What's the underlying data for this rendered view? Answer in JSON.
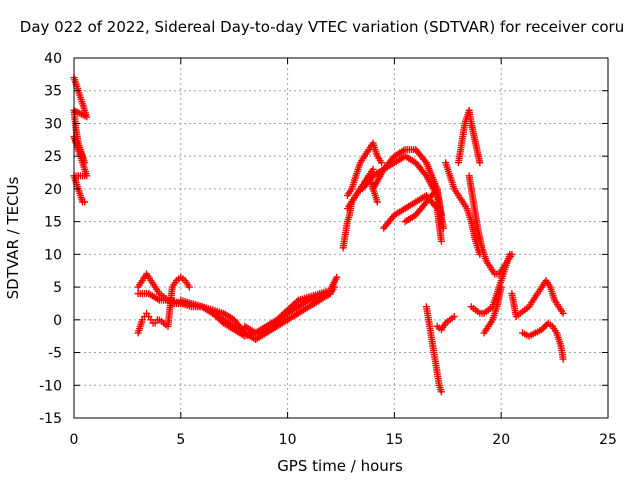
{
  "chart_data": {
    "type": "scatter",
    "title": "Day 022 of 2022, Sidereal Day-to-day VTEC variation (SDTVAR) for receiver coru",
    "xlabel": "GPS time / hours",
    "ylabel": "SDTVAR / TECUs",
    "xlim": [
      0,
      25
    ],
    "ylim": [
      -15,
      40
    ],
    "xticks": [
      0,
      5,
      10,
      15,
      20,
      25
    ],
    "yticks": [
      -15,
      -10,
      -5,
      0,
      5,
      10,
      15,
      20,
      25,
      30,
      35,
      40
    ],
    "grid": true,
    "marker": "+",
    "color": "#ff0000",
    "series": [
      {
        "x": [
          0.0,
          0.1,
          0.2,
          0.3,
          0.4,
          0.5,
          0.6,
          0.0,
          0.1,
          0.2,
          0.3,
          0.4,
          0.5,
          0.0,
          0.1,
          0.2,
          0.3,
          0.4,
          0.5,
          0.6,
          0.0,
          0.1,
          0.2,
          0.3,
          0.4,
          0.5
        ],
        "y": [
          37,
          36,
          35,
          34,
          33,
          32,
          31,
          32,
          29,
          27,
          26,
          25,
          24,
          28,
          27,
          26,
          25,
          24,
          23,
          22,
          22,
          21,
          20,
          19,
          18,
          18
        ]
      },
      {
        "x": [
          3.0,
          3.1,
          3.2,
          3.3,
          3.4,
          3.5,
          3.6,
          3.7,
          3.8,
          3.9,
          4.0,
          4.2,
          4.4,
          4.6,
          4.8,
          5.0,
          5.2,
          5.4
        ],
        "y": [
          -2,
          -1,
          0,
          0.5,
          1,
          0.5,
          0,
          -0.5,
          -0.5,
          0,
          0,
          -0.5,
          -1,
          5,
          6,
          6.5,
          6,
          5
        ]
      },
      {
        "x": [
          3.0,
          3.2,
          3.4,
          3.6,
          3.8,
          4.0,
          4.2,
          4.4,
          4.6,
          4.8,
          5.0,
          5.5,
          6.0,
          6.5,
          7.0,
          7.5,
          8.0
        ],
        "y": [
          5,
          6,
          7,
          6,
          5,
          4,
          3.5,
          3,
          2.5,
          2.5,
          2.5,
          2,
          2,
          1.5,
          1,
          0,
          -2
        ]
      },
      {
        "x": [
          3.0,
          3.5,
          4.0,
          4.5,
          5.0,
          5.5,
          6.0,
          6.5,
          7.0,
          7.5,
          8.0,
          8.5,
          9.0,
          9.5,
          10.0,
          10.5,
          11.0,
          11.5,
          12.0,
          12.2
        ],
        "y": [
          4,
          4,
          3,
          3,
          2.5,
          2.5,
          2,
          1,
          0,
          -1,
          -2,
          -3,
          -2,
          -1,
          0,
          1,
          2,
          3,
          4,
          5
        ]
      },
      {
        "x": [
          5.0,
          5.5,
          6.0,
          6.5,
          7.0,
          7.5,
          8.0,
          8.5,
          9.0,
          9.5,
          10.0,
          10.5,
          11.0,
          11.5,
          12.0,
          12.3
        ],
        "y": [
          3,
          2.5,
          2,
          1,
          -0.5,
          -1.5,
          -2.5,
          -2,
          -1,
          0,
          1.5,
          3,
          3.5,
          4,
          4.5,
          6.5
        ]
      },
      {
        "x": [
          8.0,
          8.5,
          9.0,
          9.5,
          10.0,
          10.5,
          11.0,
          11.5,
          12.0
        ],
        "y": [
          -1,
          -2,
          -1.5,
          -0.5,
          1,
          2,
          3,
          3.5,
          4
        ]
      },
      {
        "x": [
          12.6,
          12.7,
          12.8,
          12.9,
          13.0,
          13.2,
          13.4,
          13.6,
          13.8,
          14.0
        ],
        "y": [
          11,
          13,
          15,
          16,
          18,
          19,
          20,
          21,
          22,
          23
        ]
      },
      {
        "x": [
          12.8,
          13.0,
          13.2,
          13.4,
          13.6,
          13.8,
          14.0,
          14.2,
          14.4
        ],
        "y": [
          19,
          20,
          22,
          24,
          25,
          26,
          27,
          25,
          24
        ]
      },
      {
        "x": [
          12.8,
          13.0,
          13.2,
          13.4,
          13.6,
          13.8,
          14.0,
          14.2
        ],
        "y": [
          17,
          18,
          19,
          20,
          21,
          22,
          20,
          18
        ]
      },
      {
        "x": [
          13.5,
          14.0,
          14.5,
          15.0,
          15.5,
          16.0,
          16.5,
          17.0,
          17.3
        ],
        "y": [
          20,
          22,
          23,
          24,
          25,
          24,
          22,
          19,
          14
        ]
      },
      {
        "x": [
          14.0,
          14.5,
          15.0,
          15.5,
          16.0,
          16.5,
          17.0,
          17.2
        ],
        "y": [
          20,
          23,
          25,
          26,
          26,
          24,
          20,
          16
        ]
      },
      {
        "x": [
          14.5,
          15.0,
          15.5,
          16.0,
          16.5,
          17.0,
          17.2
        ],
        "y": [
          14,
          16,
          17,
          18,
          19,
          17,
          12
        ]
      },
      {
        "x": [
          15.5,
          16.0,
          16.5,
          17.0,
          17.2
        ],
        "y": [
          15,
          16,
          18,
          20,
          15
        ]
      },
      {
        "x": [
          16.5,
          16.6,
          16.7,
          16.8,
          16.9,
          17.0,
          17.1,
          17.2
        ],
        "y": [
          2,
          0,
          -2,
          -4,
          -6,
          -8,
          -10,
          -11
        ]
      },
      {
        "x": [
          17.0,
          17.2,
          17.4,
          17.6,
          17.8
        ],
        "y": [
          -1,
          -1.5,
          -0.5,
          0,
          0.5
        ]
      },
      {
        "x": [
          17.4,
          17.6,
          17.8,
          18.0,
          18.2,
          18.4,
          18.6,
          18.8,
          19.0
        ],
        "y": [
          24,
          22,
          20,
          19,
          18,
          17,
          15,
          12,
          10
        ]
      },
      {
        "x": [
          18.0,
          18.1,
          18.2,
          18.3,
          18.4,
          18.5,
          18.6,
          18.8,
          19.0
        ],
        "y": [
          24,
          26,
          28,
          30,
          31,
          32,
          30,
          27,
          24
        ]
      },
      {
        "x": [
          18.5,
          18.7,
          18.9,
          19.1,
          19.3,
          19.5,
          19.7,
          19.9,
          20.1,
          20.3,
          20.5
        ],
        "y": [
          22,
          18,
          14,
          11,
          9,
          8,
          7,
          7,
          8,
          9,
          10
        ]
      },
      {
        "x": [
          18.6,
          18.8,
          19.0,
          19.2,
          19.4,
          19.6,
          19.8,
          20.0,
          20.2,
          20.4
        ],
        "y": [
          2,
          1.5,
          1,
          1,
          1.5,
          2,
          4,
          6,
          8,
          10
        ]
      },
      {
        "x": [
          19.2,
          19.4,
          19.6,
          19.8,
          20.0
        ],
        "y": [
          -2,
          -1,
          0,
          2,
          5
        ]
      },
      {
        "x": [
          20.5,
          20.7,
          20.9,
          21.1,
          21.3,
          21.5,
          21.7,
          21.9,
          22.1,
          22.3,
          22.5,
          22.7,
          22.9
        ],
        "y": [
          4,
          0.5,
          1,
          1.5,
          2,
          3,
          4,
          5,
          6,
          5,
          3,
          2,
          1
        ]
      },
      {
        "x": [
          21.0,
          21.3,
          21.6,
          21.9,
          22.2,
          22.4,
          22.6,
          22.8,
          22.9
        ],
        "y": [
          -2,
          -2.5,
          -2,
          -1.5,
          -0.5,
          -1,
          -2,
          -4,
          -6
        ]
      }
    ]
  }
}
